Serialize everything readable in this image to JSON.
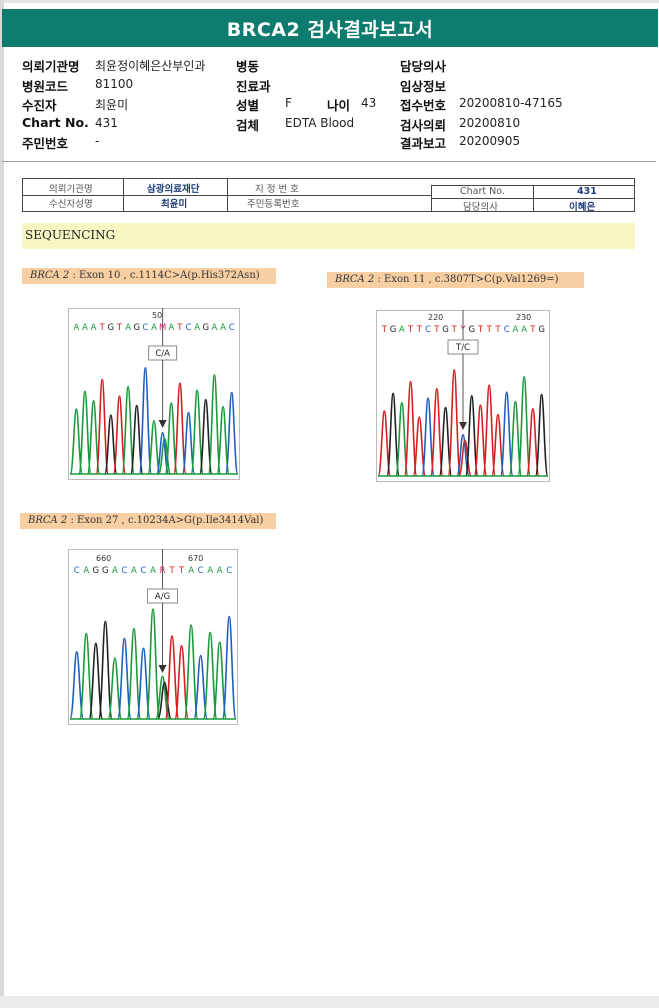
{
  "title": "BRCA2 검사결과보고서",
  "info": {
    "institution": {
      "label": "의뢰기관명",
      "value": "최윤정이혜은산부인과"
    },
    "hospital_code": {
      "label": "병원코드",
      "value": "81100"
    },
    "patient": {
      "label": "수진자",
      "value": "최윤미"
    },
    "chart_no": {
      "label": "Chart No.",
      "value": "431"
    },
    "resident_no": {
      "label": "주민번호",
      "value": "-"
    },
    "ward": {
      "label": "병동",
      "value": ""
    },
    "department": {
      "label": "진료과",
      "value": ""
    },
    "sex": {
      "label": "성별",
      "value": "F"
    },
    "age": {
      "label": "나이",
      "value": "43"
    },
    "specimen": {
      "label": "검체",
      "value": "EDTA Blood"
    },
    "physician": {
      "label": "담당의사",
      "value": ""
    },
    "clinical_info": {
      "label": "임상정보",
      "value": ""
    },
    "receipt_no": {
      "label": "접수번호",
      "value": "20200810-47165"
    },
    "request_date": {
      "label": "검사의뢰",
      "value": "20200810"
    },
    "report_date": {
      "label": "결과보고",
      "value": "20200905"
    }
  },
  "scanned_form": {
    "institution_label": "의뢰기관명",
    "institution_value": "삼광의료재단",
    "designation_label": "지 정 번 호",
    "chart_label": "Chart No.",
    "chart_value": "431",
    "patient_label": "수신자성명",
    "patient_value": "최윤미",
    "resident_label": "주민등록번호",
    "physician_label": "담당의사",
    "physician_value": "이혜은"
  },
  "sequencing_heading": "SEQUENCING",
  "variants": [
    {
      "gene": "BRCA 2",
      "detail": " : Exon 10 , c.1114C>A(p.His372Asn)",
      "sequence": "AAATGTAGCAMATCAGAAC",
      "variant_index": 10,
      "position_label": "50",
      "call": "C/A",
      "colors": {
        "A": "#1a9a3a",
        "T": "#d42020",
        "G": "#222222",
        "C": "#1f5fbf",
        "M": "#d4206a"
      }
    },
    {
      "gene": "BRCA 2",
      "detail": " : Exon 11 , c.3807T>C(p.Val1269=)",
      "sequence": "TGATTCTGTYGTTTCAATG",
      "variant_index": 9,
      "position_label_1": "220",
      "position_label_2": "230",
      "call": "T/C",
      "colors": {
        "A": "#1a9a3a",
        "T": "#d42020",
        "G": "#222222",
        "C": "#1f5fbf",
        "Y": "#d4206a"
      }
    },
    {
      "gene": "BRCA 2",
      "detail": " : Exon 27 , c.10234A>G(p.Ile3414Val)",
      "sequence": "CAGGACACARTTACAAC",
      "variant_index": 9,
      "position_label_1": "660",
      "position_label_2": "670",
      "call": "A/G",
      "colors": {
        "A": "#1a9a3a",
        "T": "#d42020",
        "G": "#222222",
        "C": "#1f5fbf",
        "R": "#d4206a"
      }
    }
  ]
}
